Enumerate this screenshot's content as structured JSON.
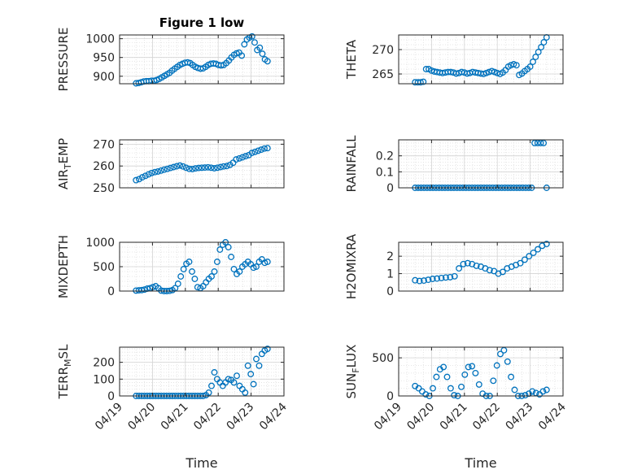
{
  "chart_data": [
    {
      "type": "scatter",
      "title": "Figure 1 low",
      "ylabel": "PRESSURE",
      "xlim": [
        "04/19",
        "04/24"
      ],
      "ylim": [
        880,
        1010
      ],
      "yticks": [
        900,
        950,
        1000
      ],
      "x_start": "04/19 12:00",
      "x_end": "04/23 12:00",
      "x_step_hours": 3,
      "values": [
        881,
        882,
        884,
        886,
        887,
        887,
        888,
        888,
        890,
        893,
        897,
        901,
        905,
        909,
        915,
        920,
        925,
        930,
        933,
        936,
        937,
        935,
        930,
        925,
        922,
        920,
        921,
        925,
        930,
        933,
        934,
        933,
        930,
        929,
        930,
        935,
        942,
        950,
        957,
        961,
        963,
        955,
        985,
        998,
        1003,
        1006,
        990,
        970,
        976,
        960,
        945,
        940
      ]
    },
    {
      "type": "scatter",
      "ylabel": "THETA",
      "xlim": [
        "04/19",
        "04/24"
      ],
      "ylim": [
        263,
        273
      ],
      "yticks": [
        265,
        270
      ],
      "x_start": "04/19 12:00",
      "x_end": "04/23 12:00",
      "x_step_hours": 3,
      "values": [
        263.3,
        263.3,
        263.3,
        263.4,
        266.0,
        266.0,
        265.7,
        265.5,
        265.4,
        265.3,
        265.2,
        265.3,
        265.4,
        265.4,
        265.3,
        265.1,
        265.2,
        265.4,
        265.3,
        265.1,
        265.2,
        265.4,
        265.3,
        265.2,
        265.1,
        265.0,
        265.2,
        265.4,
        265.6,
        265.4,
        265.2,
        265.0,
        265.3,
        265.8,
        266.5,
        266.8,
        267.0,
        266.8,
        264.8,
        265.1,
        265.6,
        266.0,
        266.5,
        267.5,
        268.5,
        269.5,
        270.5,
        271.5,
        272.5
      ]
    },
    {
      "type": "scatter",
      "ylabel": "AIR_TEMP",
      "ylabel_display": "AIR_TEMP",
      "xlim": [
        "04/19",
        "04/24"
      ],
      "ylim": [
        250,
        272
      ],
      "yticks": [
        250,
        260,
        270
      ],
      "x_start": "04/19 12:00",
      "x_end": "04/23 12:00",
      "x_step_hours": 3,
      "values": [
        253.5,
        254.0,
        254.8,
        255.5,
        256.2,
        256.8,
        257.2,
        257.5,
        257.9,
        258.3,
        258.7,
        259.1,
        259.5,
        259.9,
        260.2,
        259.8,
        259.2,
        258.7,
        258.6,
        258.9,
        259.1,
        259.2,
        259.3,
        259.4,
        259.2,
        259.0,
        259.2,
        259.5,
        259.8,
        260.0,
        260.5,
        261.5,
        263.0,
        263.5,
        264.0,
        264.5,
        265.0,
        266.0,
        266.5,
        267.0,
        267.5,
        268.0,
        268.2
      ]
    },
    {
      "type": "scatter",
      "ylabel": "RAINFALL",
      "xlim": [
        "04/19",
        "04/24"
      ],
      "ylim": [
        0,
        0.3
      ],
      "yticks": [
        0,
        0.1,
        0.2
      ],
      "x_start": "04/19 12:00",
      "x_end": "04/23 12:00",
      "x_step_hours": 3,
      "values": [
        0,
        0,
        0,
        0,
        0,
        0,
        0,
        0,
        0,
        0,
        0,
        0,
        0,
        0,
        0,
        0,
        0,
        0,
        0,
        0,
        0,
        0,
        0,
        0,
        0,
        0,
        0,
        0,
        0,
        0,
        0,
        0,
        0,
        0,
        0,
        0,
        0,
        0,
        0,
        0,
        0.28,
        0.28,
        0.28,
        0.28,
        0
      ]
    },
    {
      "type": "scatter",
      "ylabel": "MIXDEPTH",
      "xlim": [
        "04/19",
        "04/24"
      ],
      "ylim": [
        0,
        1000
      ],
      "yticks": [
        0,
        500,
        1000
      ],
      "x_start": "04/19 12:00",
      "x_end": "04/23 12:00",
      "x_step_hours": 3,
      "values": [
        10,
        15,
        20,
        30,
        50,
        60,
        80,
        100,
        60,
        10,
        0,
        0,
        5,
        20,
        60,
        150,
        300,
        450,
        560,
        600,
        400,
        250,
        80,
        60,
        100,
        180,
        250,
        300,
        400,
        600,
        850,
        950,
        1000,
        900,
        700,
        450,
        350,
        400,
        500,
        550,
        600,
        550,
        480,
        500,
        600,
        650,
        580,
        600
      ]
    },
    {
      "type": "scatter",
      "ylabel": "H2OMIXRA",
      "xlim": [
        "04/19",
        "04/24"
      ],
      "ylim": [
        0,
        2.8
      ],
      "yticks": [
        0,
        1,
        2
      ],
      "x_start": "04/19 12:00",
      "x_end": "04/23 12:00",
      "x_step_hours": 3,
      "values": [
        0.62,
        0.58,
        0.6,
        0.65,
        0.7,
        0.72,
        0.75,
        0.78,
        0.8,
        0.85,
        1.3,
        1.55,
        1.6,
        1.55,
        1.45,
        1.4,
        1.3,
        1.2,
        1.15,
        1.0,
        1.1,
        1.3,
        1.4,
        1.5,
        1.6,
        1.8,
        2.0,
        2.2,
        2.4,
        2.6,
        2.7
      ]
    },
    {
      "type": "scatter",
      "ylabel": "TERR_MSL",
      "ylabel_display": "TERR_MSL",
      "xlim": [
        "04/19",
        "04/24"
      ],
      "ylim": [
        0,
        290
      ],
      "yticks": [
        0,
        100,
        200
      ],
      "x_start": "04/19 12:00",
      "x_end": "04/23 12:00",
      "x_step_hours": 3,
      "values": [
        0,
        0,
        0,
        0,
        0,
        0,
        0,
        0,
        0,
        0,
        0,
        0,
        0,
        0,
        0,
        0,
        0,
        0,
        0,
        0,
        0,
        0,
        0,
        0,
        0,
        5,
        20,
        60,
        140,
        100,
        80,
        60,
        80,
        100,
        95,
        80,
        120,
        60,
        40,
        20,
        180,
        130,
        70,
        220,
        180,
        250,
        270,
        280
      ]
    },
    {
      "type": "scatter",
      "ylabel": "SUN_FLUX",
      "ylabel_display": "SUN_FLUX",
      "xlim": [
        "04/19",
        "04/24"
      ],
      "ylim": [
        0,
        640
      ],
      "yticks": [
        0,
        500
      ],
      "x_start": "04/19 12:00",
      "x_end": "04/23 12:00",
      "x_step_hours": 3,
      "values": [
        130,
        100,
        60,
        20,
        0,
        100,
        250,
        350,
        380,
        250,
        100,
        10,
        0,
        120,
        280,
        380,
        390,
        300,
        150,
        30,
        0,
        0,
        200,
        400,
        550,
        600,
        450,
        250,
        80,
        0,
        0,
        10,
        30,
        60,
        40,
        20,
        60,
        80
      ]
    }
  ],
  "xaxis": {
    "tick_labels": [
      "04/19",
      "04/20",
      "04/21",
      "04/22",
      "04/23",
      "04/24"
    ],
    "label": "Time"
  },
  "style": {
    "marker_color": "#0072BD",
    "axis_color": "#262626",
    "grid_color": "#dfdfdf"
  }
}
